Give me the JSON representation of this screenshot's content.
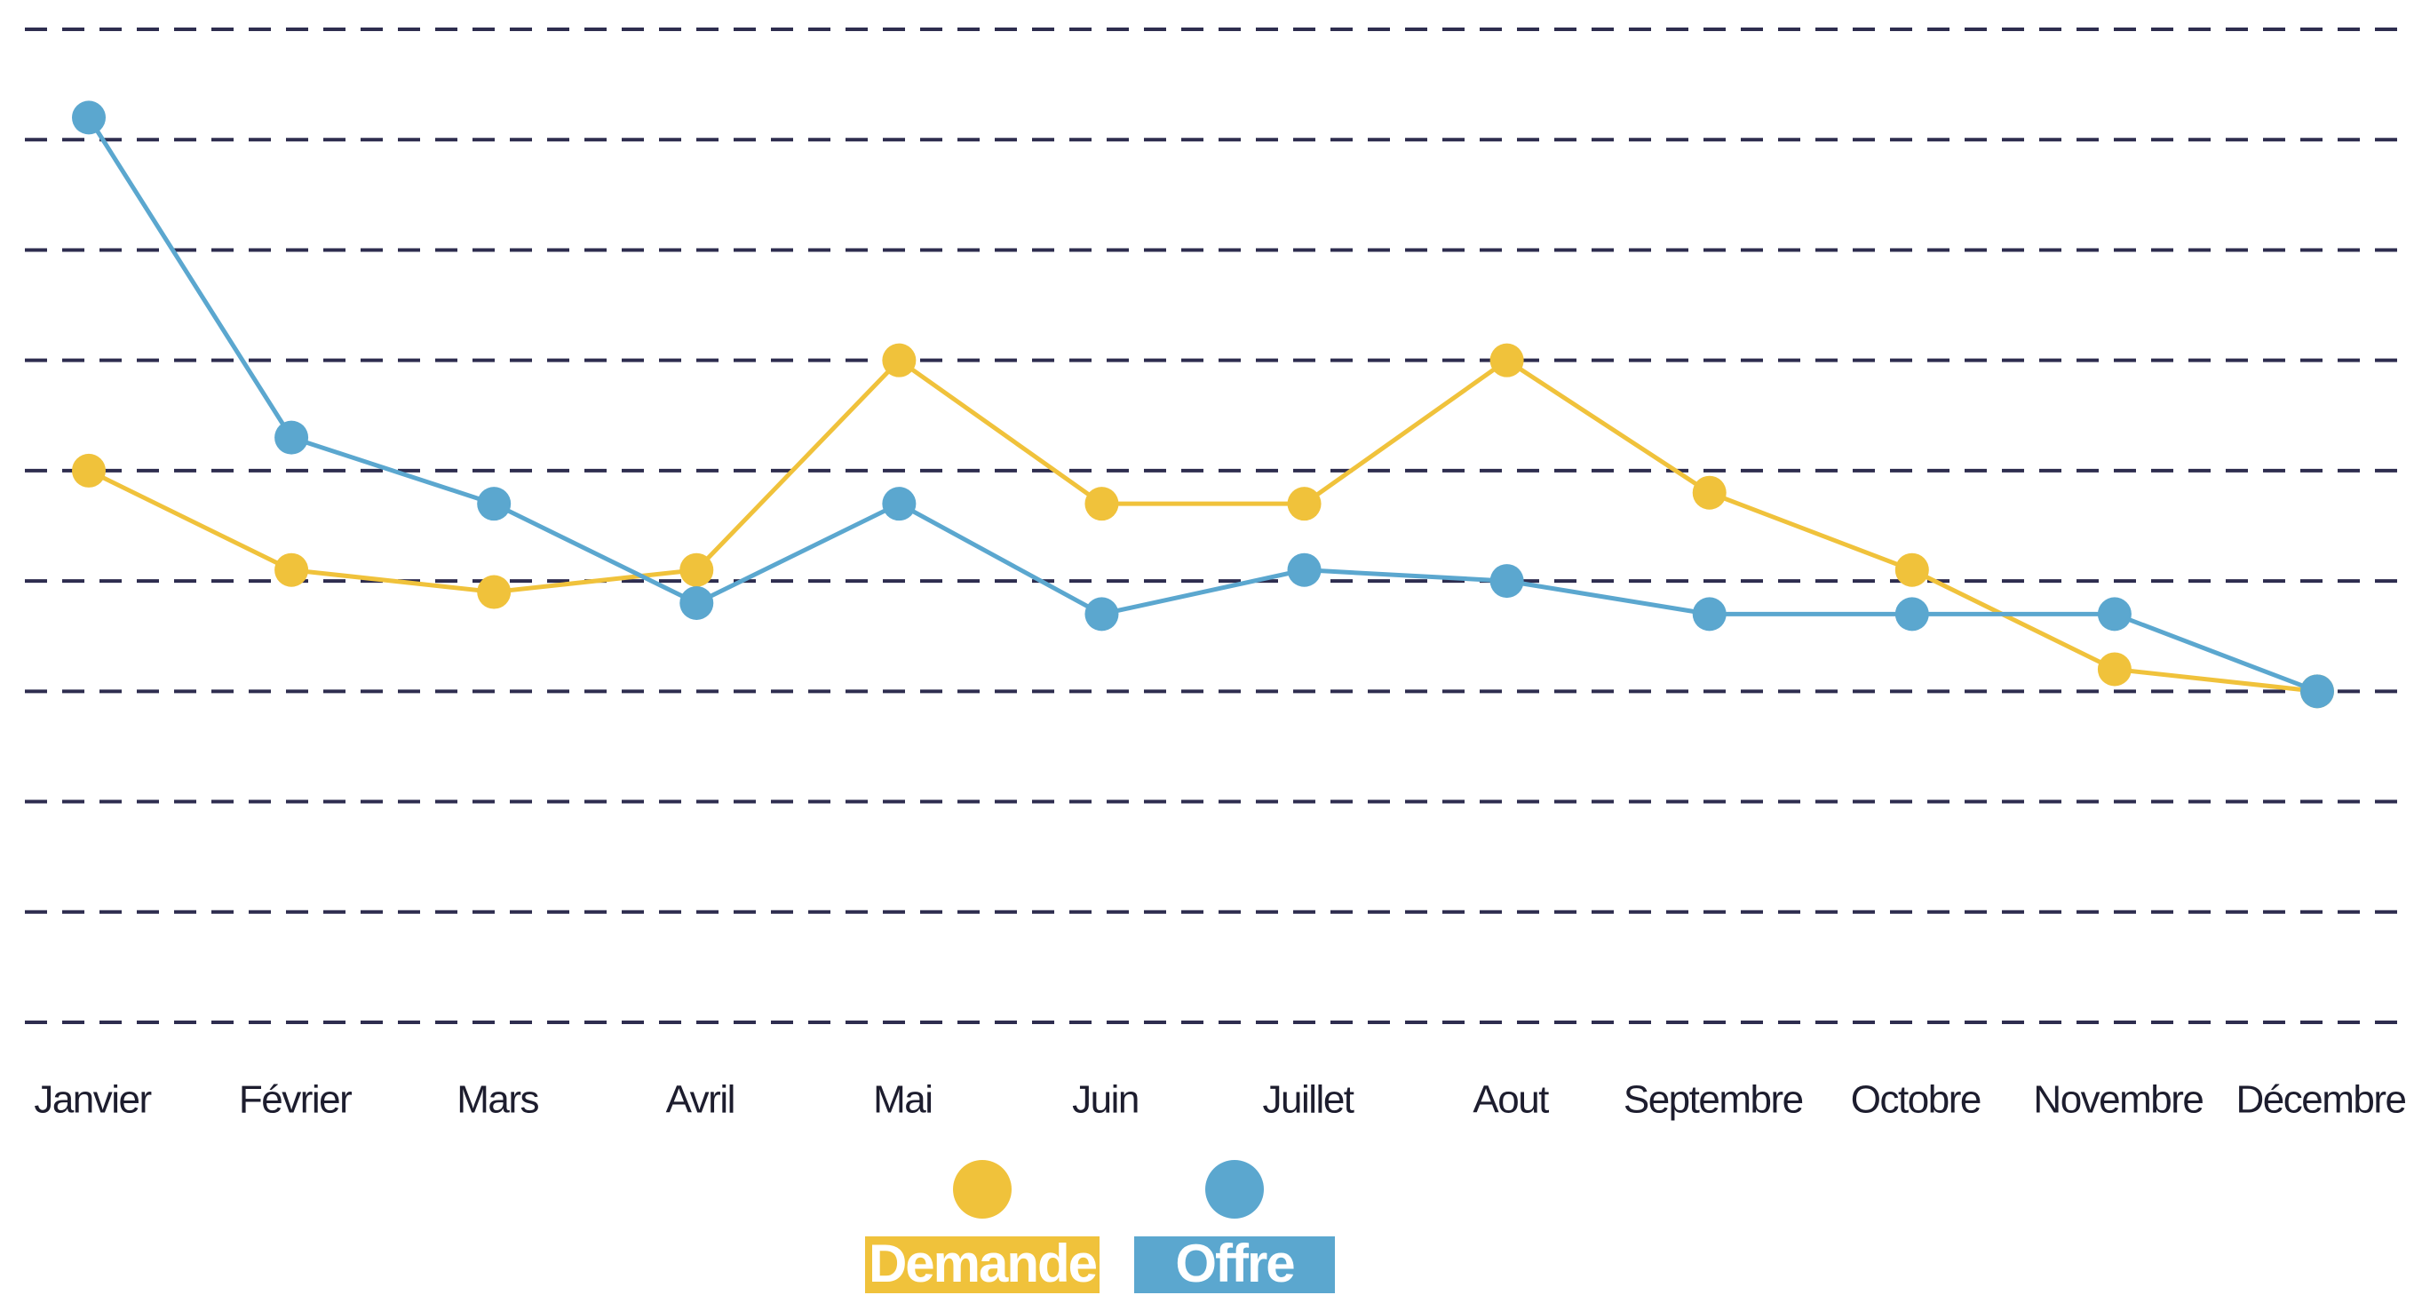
{
  "chart_data": {
    "type": "line",
    "categories": [
      "Janvier",
      "Février",
      "Mars",
      "Avril",
      "Mai",
      "Juin",
      "Juillet",
      "Aout",
      "Septembre",
      "Octobre",
      "Novembre",
      "Décembre"
    ],
    "series": [
      {
        "name": "Demande",
        "color": "#f0c23b",
        "values": [
          5.0,
          4.1,
          3.9,
          4.1,
          6.0,
          4.7,
          4.7,
          6.0,
          4.8,
          4.1,
          3.2,
          3.0
        ]
      },
      {
        "name": "Offre",
        "color": "#5ba7cf",
        "values": [
          8.2,
          5.3,
          4.7,
          3.8,
          4.7,
          3.7,
          4.1,
          4.0,
          3.7,
          3.7,
          3.7,
          3.0
        ]
      }
    ],
    "ylim": [
      0,
      9
    ],
    "yticks": [
      0,
      1,
      2,
      3,
      4,
      5,
      6,
      7,
      8,
      9
    ],
    "grid": true,
    "legend": "bottom"
  }
}
